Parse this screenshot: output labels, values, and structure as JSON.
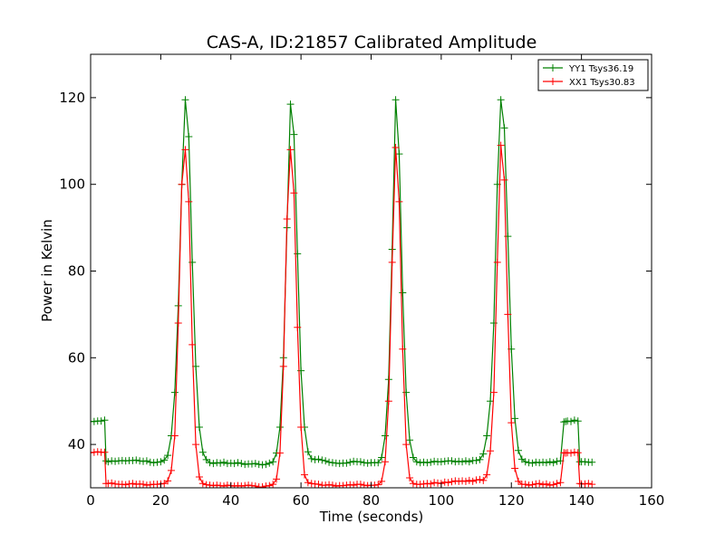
{
  "chart_data": {
    "type": "line",
    "title": "CAS-A, ID:21857 Calibrated Amplitude",
    "xlabel": "Time (seconds)",
    "ylabel": "Power in Kelvin",
    "xlim": [
      0,
      160
    ],
    "ylim": [
      30,
      130
    ],
    "x_ticks": [
      0,
      20,
      40,
      60,
      80,
      100,
      120,
      140,
      160
    ],
    "y_ticks": [
      40,
      60,
      80,
      100,
      120
    ],
    "x_tick_labels": [
      "0",
      "20",
      "40",
      "60",
      "80",
      "100",
      "120",
      "140",
      "160"
    ],
    "y_tick_labels": [
      "40",
      "60",
      "80",
      "100",
      "120"
    ],
    "grid": false,
    "legend_position": "top-right",
    "marker": "plus",
    "series": [
      {
        "name": "YY1 Tsys36.19",
        "color": "#008000",
        "x": [
          0,
          1,
          2,
          3,
          4,
          4.4,
          5,
          6,
          7,
          8,
          9,
          10,
          11,
          12,
          13,
          14,
          15,
          16,
          17,
          18,
          19,
          20,
          21,
          22,
          23,
          24,
          25,
          26,
          27,
          28,
          29,
          30,
          31,
          32,
          33,
          34,
          35,
          36,
          37,
          38,
          39,
          40,
          41,
          42,
          43,
          44,
          45,
          46,
          47,
          48,
          49,
          50,
          51,
          52,
          53,
          54,
          55,
          56,
          57,
          58,
          59,
          60,
          61,
          62,
          63,
          64,
          65,
          66,
          67,
          68,
          69,
          70,
          71,
          72,
          73,
          74,
          75,
          76,
          77,
          78,
          79,
          80,
          81,
          82,
          83,
          84,
          85,
          86,
          87,
          88,
          89,
          90,
          91,
          92,
          93,
          94,
          95,
          96,
          97,
          98,
          99,
          100,
          101,
          102,
          103,
          104,
          105,
          106,
          107,
          108,
          109,
          110,
          111,
          112,
          113,
          114,
          115,
          116,
          117,
          118,
          119,
          120,
          121,
          122,
          123,
          124,
          125,
          126,
          127,
          128,
          129,
          130,
          131,
          132,
          133,
          134,
          135,
          135.5,
          136,
          137,
          138,
          139,
          139.5,
          140,
          141,
          142,
          143
        ],
        "y": [
          45.3,
          45.3,
          45.4,
          45.4,
          45.6,
          36.2,
          36.0,
          36.2,
          36.1,
          36.2,
          36.3,
          36.2,
          36.3,
          36.3,
          36.4,
          36.2,
          36.1,
          36.2,
          35.9,
          35.8,
          35.9,
          36.0,
          36.4,
          37.5,
          42.0,
          52.0,
          72.0,
          100.0,
          119.5,
          111.0,
          82.0,
          58.0,
          44.0,
          38.2,
          36.5,
          35.8,
          35.6,
          35.8,
          35.7,
          35.9,
          35.6,
          35.7,
          35.6,
          35.8,
          35.6,
          35.4,
          35.5,
          35.5,
          35.6,
          35.4,
          35.3,
          35.4,
          35.7,
          36.0,
          38.0,
          44.0,
          60.0,
          90.0,
          118.5,
          111.5,
          84.0,
          57.0,
          44.0,
          38.3,
          36.7,
          36.5,
          36.6,
          36.4,
          36.2,
          35.9,
          35.8,
          35.7,
          35.6,
          35.7,
          35.7,
          35.9,
          36.1,
          36.0,
          36.0,
          35.8,
          35.7,
          35.8,
          35.8,
          35.8,
          37.0,
          42.0,
          55.0,
          85.0,
          119.5,
          107.0,
          75.0,
          52.0,
          41.0,
          37.0,
          36.0,
          35.8,
          35.9,
          35.8,
          35.9,
          36.1,
          36.0,
          36.0,
          36.1,
          36.2,
          36.2,
          36.0,
          36.1,
          36.0,
          36.2,
          36.0,
          36.3,
          36.3,
          36.5,
          37.8,
          42.0,
          50.0,
          68.0,
          100.0,
          119.5,
          113.0,
          88.0,
          62.0,
          46.0,
          38.6,
          36.6,
          36.0,
          35.8,
          35.7,
          35.9,
          35.8,
          35.9,
          35.8,
          36.0,
          35.8,
          36.1,
          36.2,
          45.2,
          45.3,
          45.4,
          45.3,
          45.6,
          45.4,
          36.0,
          36.0,
          36.0,
          35.9,
          35.9
        ]
      },
      {
        "name": "XX1 Tsys30.83",
        "color": "#ff0000",
        "x": [
          0,
          1,
          2,
          3,
          4,
          4.4,
          5,
          6,
          7,
          8,
          9,
          10,
          11,
          12,
          13,
          14,
          15,
          16,
          17,
          18,
          19,
          20,
          21,
          22,
          23,
          24,
          25,
          26,
          27,
          28,
          29,
          30,
          31,
          32,
          33,
          34,
          35,
          36,
          37,
          38,
          39,
          40,
          41,
          42,
          43,
          44,
          45,
          46,
          47,
          48,
          49,
          50,
          51,
          52,
          53,
          54,
          55,
          56,
          57,
          58,
          59,
          60,
          61,
          62,
          63,
          64,
          65,
          66,
          67,
          68,
          69,
          70,
          71,
          72,
          73,
          74,
          75,
          76,
          77,
          78,
          79,
          80,
          81,
          82,
          83,
          84,
          85,
          86,
          87,
          88,
          89,
          90,
          91,
          92,
          93,
          94,
          95,
          96,
          97,
          98,
          99,
          100,
          101,
          102,
          103,
          104,
          105,
          106,
          107,
          108,
          109,
          110,
          111,
          112,
          113,
          114,
          115,
          116,
          117,
          118,
          119,
          120,
          121,
          122,
          123,
          124,
          125,
          126,
          127,
          128,
          129,
          130,
          131,
          132,
          133,
          134,
          135,
          135.5,
          136,
          137,
          138,
          139,
          139.5,
          140,
          141,
          142,
          143
        ],
        "y": [
          38.1,
          38.2,
          38.3,
          38.2,
          38.2,
          31.0,
          31.0,
          31.1,
          30.9,
          30.8,
          30.8,
          30.7,
          30.9,
          31.0,
          30.8,
          30.9,
          30.8,
          30.6,
          30.7,
          30.8,
          30.8,
          30.9,
          31.0,
          31.6,
          34.0,
          42.0,
          68.0,
          100.0,
          108.0,
          96.0,
          63.0,
          40.0,
          32.5,
          31.0,
          30.7,
          30.6,
          30.5,
          30.6,
          30.5,
          30.4,
          30.6,
          30.5,
          30.4,
          30.5,
          30.4,
          30.5,
          30.6,
          30.5,
          30.4,
          30.2,
          30.2,
          30.4,
          30.5,
          30.8,
          32.0,
          38.0,
          58.0,
          92.0,
          108.0,
          98.0,
          67.0,
          44.0,
          33.0,
          31.2,
          31.0,
          30.9,
          30.8,
          30.6,
          30.6,
          30.7,
          30.6,
          30.4,
          30.5,
          30.5,
          30.6,
          30.7,
          30.6,
          30.8,
          30.8,
          30.6,
          30.5,
          30.6,
          30.6,
          30.7,
          31.5,
          36.0,
          50.0,
          82.0,
          108.5,
          96.0,
          62.0,
          40.0,
          32.3,
          31.0,
          30.8,
          30.8,
          30.9,
          31.0,
          30.9,
          31.2,
          31.1,
          31.0,
          31.3,
          31.2,
          31.4,
          31.6,
          31.5,
          31.6,
          31.5,
          31.7,
          31.5,
          31.8,
          31.9,
          31.7,
          33.0,
          38.5,
          52.0,
          82.0,
          109.0,
          101.0,
          70.0,
          45.0,
          34.5,
          31.5,
          30.8,
          30.8,
          30.6,
          30.7,
          30.9,
          31.0,
          30.7,
          30.9,
          30.6,
          30.7,
          31.0,
          31.2,
          38.1,
          38.0,
          38.1,
          38.0,
          38.2,
          38.1,
          31.0,
          30.9,
          30.9,
          31.0,
          30.8
        ]
      }
    ]
  }
}
